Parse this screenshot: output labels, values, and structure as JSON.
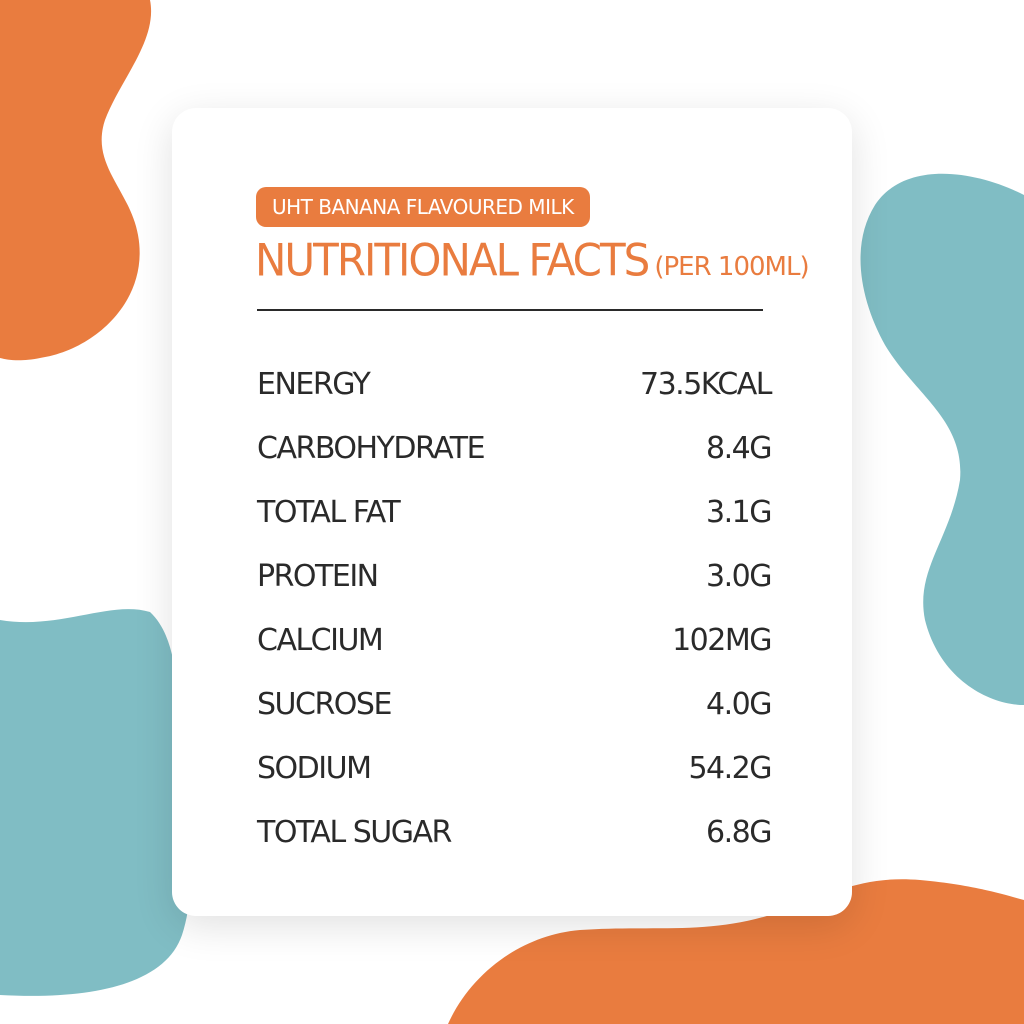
{
  "colors": {
    "accent": "#e97c3f",
    "teal": "#80bdc4",
    "text": "#2a2a2a",
    "background": "#ffffff",
    "card": "#ffffff"
  },
  "product_badge": "UHT BANANA FLAVOURED MILK",
  "title": {
    "main": "NUTRITIONAL FACTS",
    "sub": "(PER 100ML)"
  },
  "nutrients": [
    {
      "name": "ENERGY",
      "value": "73.5KCAL"
    },
    {
      "name": "CARBOHYDRATE",
      "value": "8.4G"
    },
    {
      "name": "TOTAL FAT",
      "value": "3.1G"
    },
    {
      "name": "PROTEIN",
      "value": "3.0G"
    },
    {
      "name": "CALCIUM",
      "value": "102MG"
    },
    {
      "name": "SUCROSE",
      "value": "4.0G"
    },
    {
      "name": "SODIUM",
      "value": "54.2G"
    },
    {
      "name": "TOTAL SUGAR",
      "value": "6.8G"
    }
  ]
}
